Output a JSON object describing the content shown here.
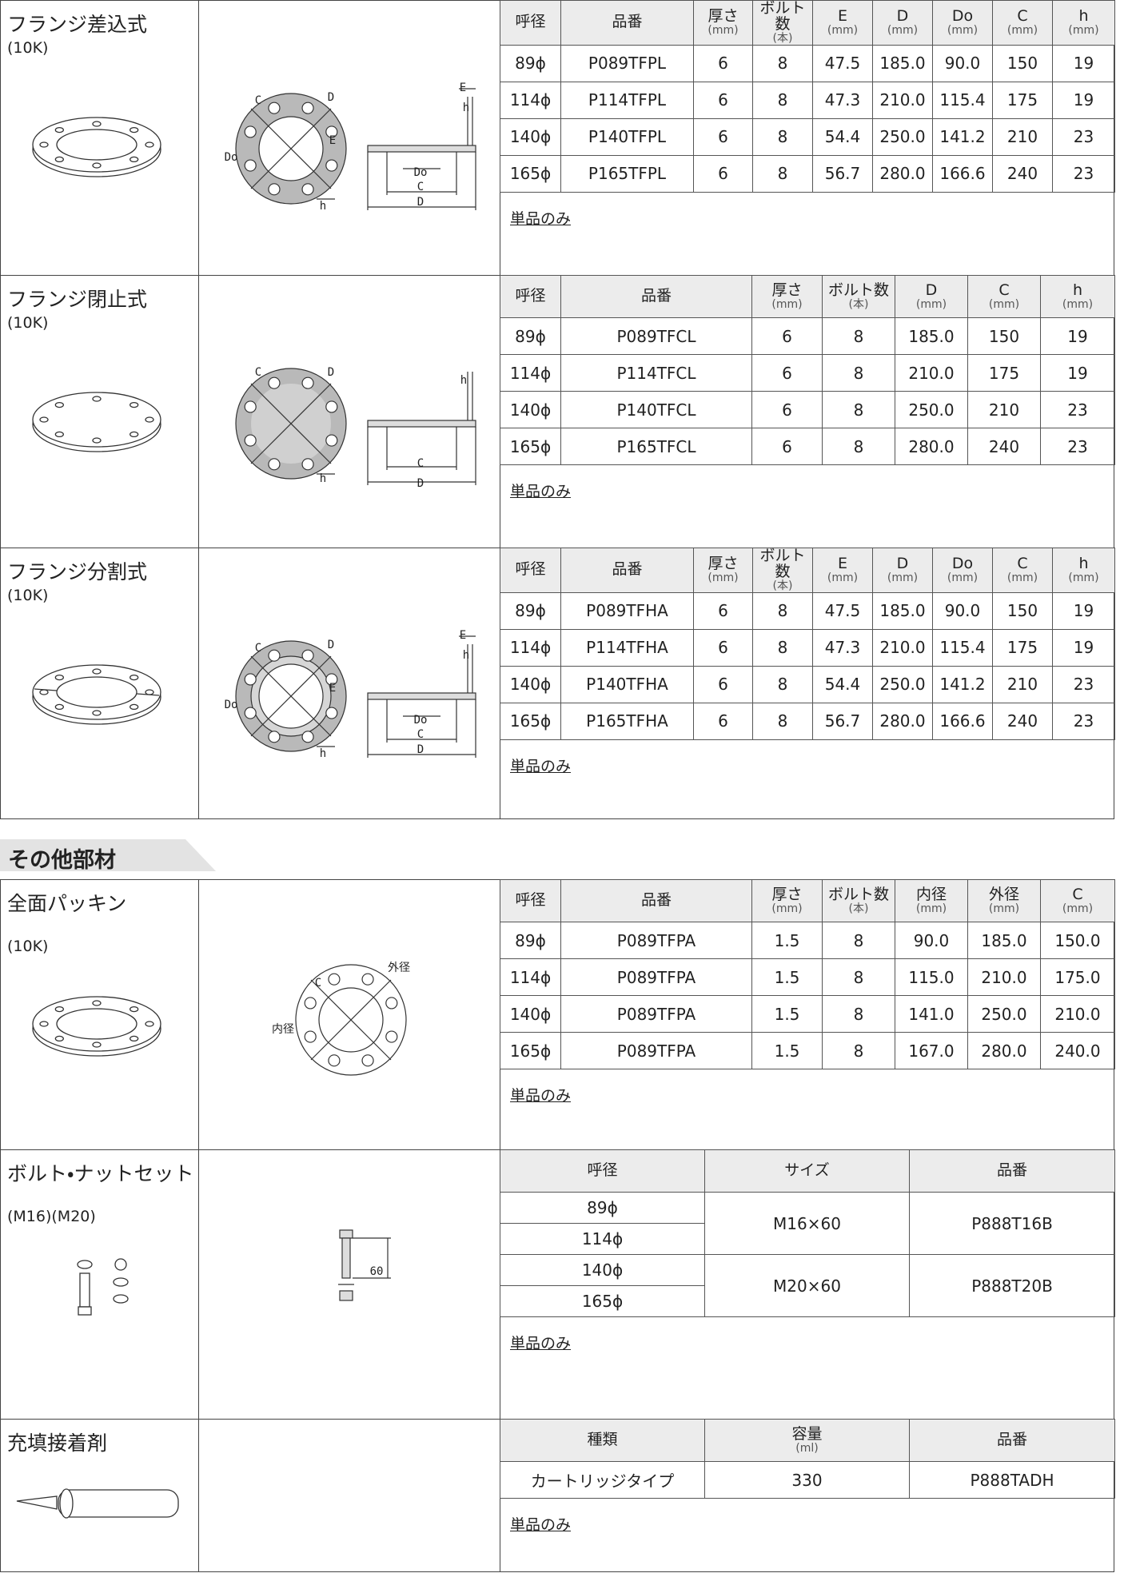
{
  "sections": [
    {
      "products": [
        {
          "name": "フランジ差込式",
          "spec": "(10K)",
          "diagram_labels": [
            "C",
            "D",
            "Do",
            "E",
            "E",
            "h",
            "Do",
            "C",
            "D",
            "h"
          ],
          "table": {
            "headers": [
              {
                "label": "呼径"
              },
              {
                "label": "品番"
              },
              {
                "label": "厚さ",
                "unit": "(mm)"
              },
              {
                "label": "ボルト数",
                "unit": "(本)"
              },
              {
                "label": "E",
                "unit": "(mm)"
              },
              {
                "label": "D",
                "unit": "(mm)"
              },
              {
                "label": "Do",
                "unit": "(mm)"
              },
              {
                "label": "C",
                "unit": "(mm)"
              },
              {
                "label": "h",
                "unit": "(mm)"
              }
            ],
            "rows": [
              [
                "89ϕ",
                "P089TFPL",
                "6",
                "8",
                "47.5",
                "185.0",
                "90.0",
                "150",
                "19"
              ],
              [
                "114ϕ",
                "P114TFPL",
                "6",
                "8",
                "47.3",
                "210.0",
                "115.4",
                "175",
                "19"
              ],
              [
                "140ϕ",
                "P140TFPL",
                "6",
                "8",
                "54.4",
                "250.0",
                "141.2",
                "210",
                "23"
              ],
              [
                "165ϕ",
                "P165TFPL",
                "6",
                "8",
                "56.7",
                "280.0",
                "166.6",
                "240",
                "23"
              ]
            ]
          },
          "note": "単品のみ"
        },
        {
          "name": "フランジ閉止式",
          "spec": "(10K)",
          "diagram_labels": [
            "C",
            "D",
            "h",
            "C",
            "D",
            "h"
          ],
          "table": {
            "headers": [
              {
                "label": "呼径"
              },
              {
                "label": "品番"
              },
              {
                "label": "厚さ",
                "unit": "(mm)"
              },
              {
                "label": "ボルト数",
                "unit": "(本)"
              },
              {
                "label": "D",
                "unit": "(mm)"
              },
              {
                "label": "C",
                "unit": "(mm)"
              },
              {
                "label": "h",
                "unit": "(mm)"
              }
            ],
            "rows": [
              [
                "89ϕ",
                "P089TFCL",
                "6",
                "8",
                "185.0",
                "150",
                "19"
              ],
              [
                "114ϕ",
                "P114TFCL",
                "6",
                "8",
                "210.0",
                "175",
                "19"
              ],
              [
                "140ϕ",
                "P140TFCL",
                "6",
                "8",
                "250.0",
                "210",
                "23"
              ],
              [
                "165ϕ",
                "P165TFCL",
                "6",
                "8",
                "280.0",
                "240",
                "23"
              ]
            ]
          },
          "note": "単品のみ"
        },
        {
          "name": "フランジ分割式",
          "spec": "(10K)",
          "diagram_labels": [
            "C",
            "D",
            "Do",
            "E",
            "E",
            "h",
            "Do",
            "C",
            "D",
            "h"
          ],
          "table": {
            "headers": [
              {
                "label": "呼径"
              },
              {
                "label": "品番"
              },
              {
                "label": "厚さ",
                "unit": "(mm)"
              },
              {
                "label": "ボルト数",
                "unit": "(本)"
              },
              {
                "label": "E",
                "unit": "(mm)"
              },
              {
                "label": "D",
                "unit": "(mm)"
              },
              {
                "label": "Do",
                "unit": "(mm)"
              },
              {
                "label": "C",
                "unit": "(mm)"
              },
              {
                "label": "h",
                "unit": "(mm)"
              }
            ],
            "rows": [
              [
                "89ϕ",
                "P089TFHA",
                "6",
                "8",
                "47.5",
                "185.0",
                "90.0",
                "150",
                "19"
              ],
              [
                "114ϕ",
                "P114TFHA",
                "6",
                "8",
                "47.3",
                "210.0",
                "115.4",
                "175",
                "19"
              ],
              [
                "140ϕ",
                "P140TFHA",
                "6",
                "8",
                "54.4",
                "250.0",
                "141.2",
                "210",
                "23"
              ],
              [
                "165ϕ",
                "P165TFHA",
                "6",
                "8",
                "56.7",
                "280.0",
                "166.6",
                "240",
                "23"
              ]
            ]
          },
          "note": "単品のみ"
        }
      ]
    },
    {
      "title": "その他部材",
      "products": [
        {
          "name": "全面パッキン",
          "spec": "(10K)",
          "diagram_labels": [
            "C",
            "外径",
            "内径"
          ],
          "table": {
            "headers": [
              {
                "label": "呼径"
              },
              {
                "label": "品番"
              },
              {
                "label": "厚さ",
                "unit": "(mm)"
              },
              {
                "label": "ボルト数",
                "unit": "(本)"
              },
              {
                "label": "内径",
                "unit": "(mm)"
              },
              {
                "label": "外径",
                "unit": "(mm)"
              },
              {
                "label": "C",
                "unit": "(mm)"
              }
            ],
            "rows": [
              [
                "89ϕ",
                "P089TFPA",
                "1.5",
                "8",
                "90.0",
                "185.0",
                "150.0"
              ],
              [
                "114ϕ",
                "P089TFPA",
                "1.5",
                "8",
                "115.0",
                "210.0",
                "175.0"
              ],
              [
                "140ϕ",
                "P089TFPA",
                "1.5",
                "8",
                "141.0",
                "250.0",
                "210.0"
              ],
              [
                "165ϕ",
                "P089TFPA",
                "1.5",
                "8",
                "167.0",
                "280.0",
                "240.0"
              ]
            ]
          },
          "note": "単品のみ"
        },
        {
          "name": "ボルト・ナットセット",
          "spec": "(M16)(M20)",
          "diagram_labels": [
            "60"
          ],
          "table": {
            "headers": [
              {
                "label": "呼径"
              },
              {
                "label": "サイズ"
              },
              {
                "label": "品番"
              }
            ],
            "groups": [
              {
                "sizes": [
                  "89ϕ",
                  "114ϕ"
                ],
                "size": "M16×60",
                "part": "P888T16B"
              },
              {
                "sizes": [
                  "140ϕ",
                  "165ϕ"
                ],
                "size": "M20×60",
                "part": "P888T20B"
              }
            ]
          },
          "note": "単品のみ"
        },
        {
          "name": "充填接着剤",
          "table": {
            "headers": [
              {
                "label": "種類"
              },
              {
                "label": "容量",
                "unit": "(ml)"
              },
              {
                "label": "品番"
              }
            ],
            "rows": [
              [
                "カートリッジタイプ",
                "330",
                "P888TADH"
              ]
            ]
          },
          "note": "単品のみ"
        }
      ]
    }
  ]
}
